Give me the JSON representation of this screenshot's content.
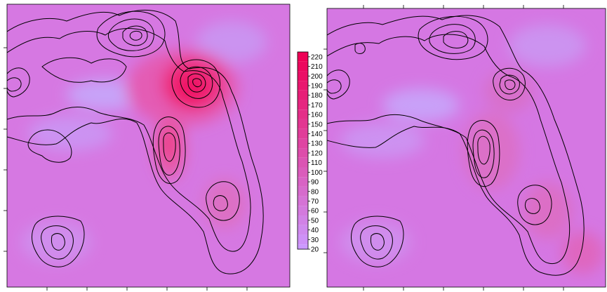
{
  "chart_data": [
    {
      "type": "heatmap",
      "panel": "left",
      "title": "",
      "xlabel": "",
      "ylabel": "",
      "xlim": [
        0,
        1
      ],
      "ylim": [
        0,
        1
      ],
      "colorbar": {
        "placement": "right",
        "min": 20,
        "max": 225,
        "levels": [
          20,
          30,
          40,
          50,
          60,
          70,
          80,
          90,
          100,
          110,
          120,
          130,
          140,
          150,
          160,
          170,
          180,
          190,
          200,
          210,
          220
        ],
        "low_color": "#cc99ff",
        "high_color": "#ee0055"
      },
      "contours": "black",
      "grid": false
    },
    {
      "type": "heatmap",
      "panel": "right",
      "title": "",
      "xlabel": "",
      "ylabel": "",
      "xlim": [
        0,
        1
      ],
      "ylim": [
        0,
        1
      ],
      "contours": "black",
      "grid": false
    }
  ],
  "colors": {
    "base": "#d577e3",
    "low": "#c49af7",
    "high": "#ec1f69",
    "contour": "#000000"
  }
}
